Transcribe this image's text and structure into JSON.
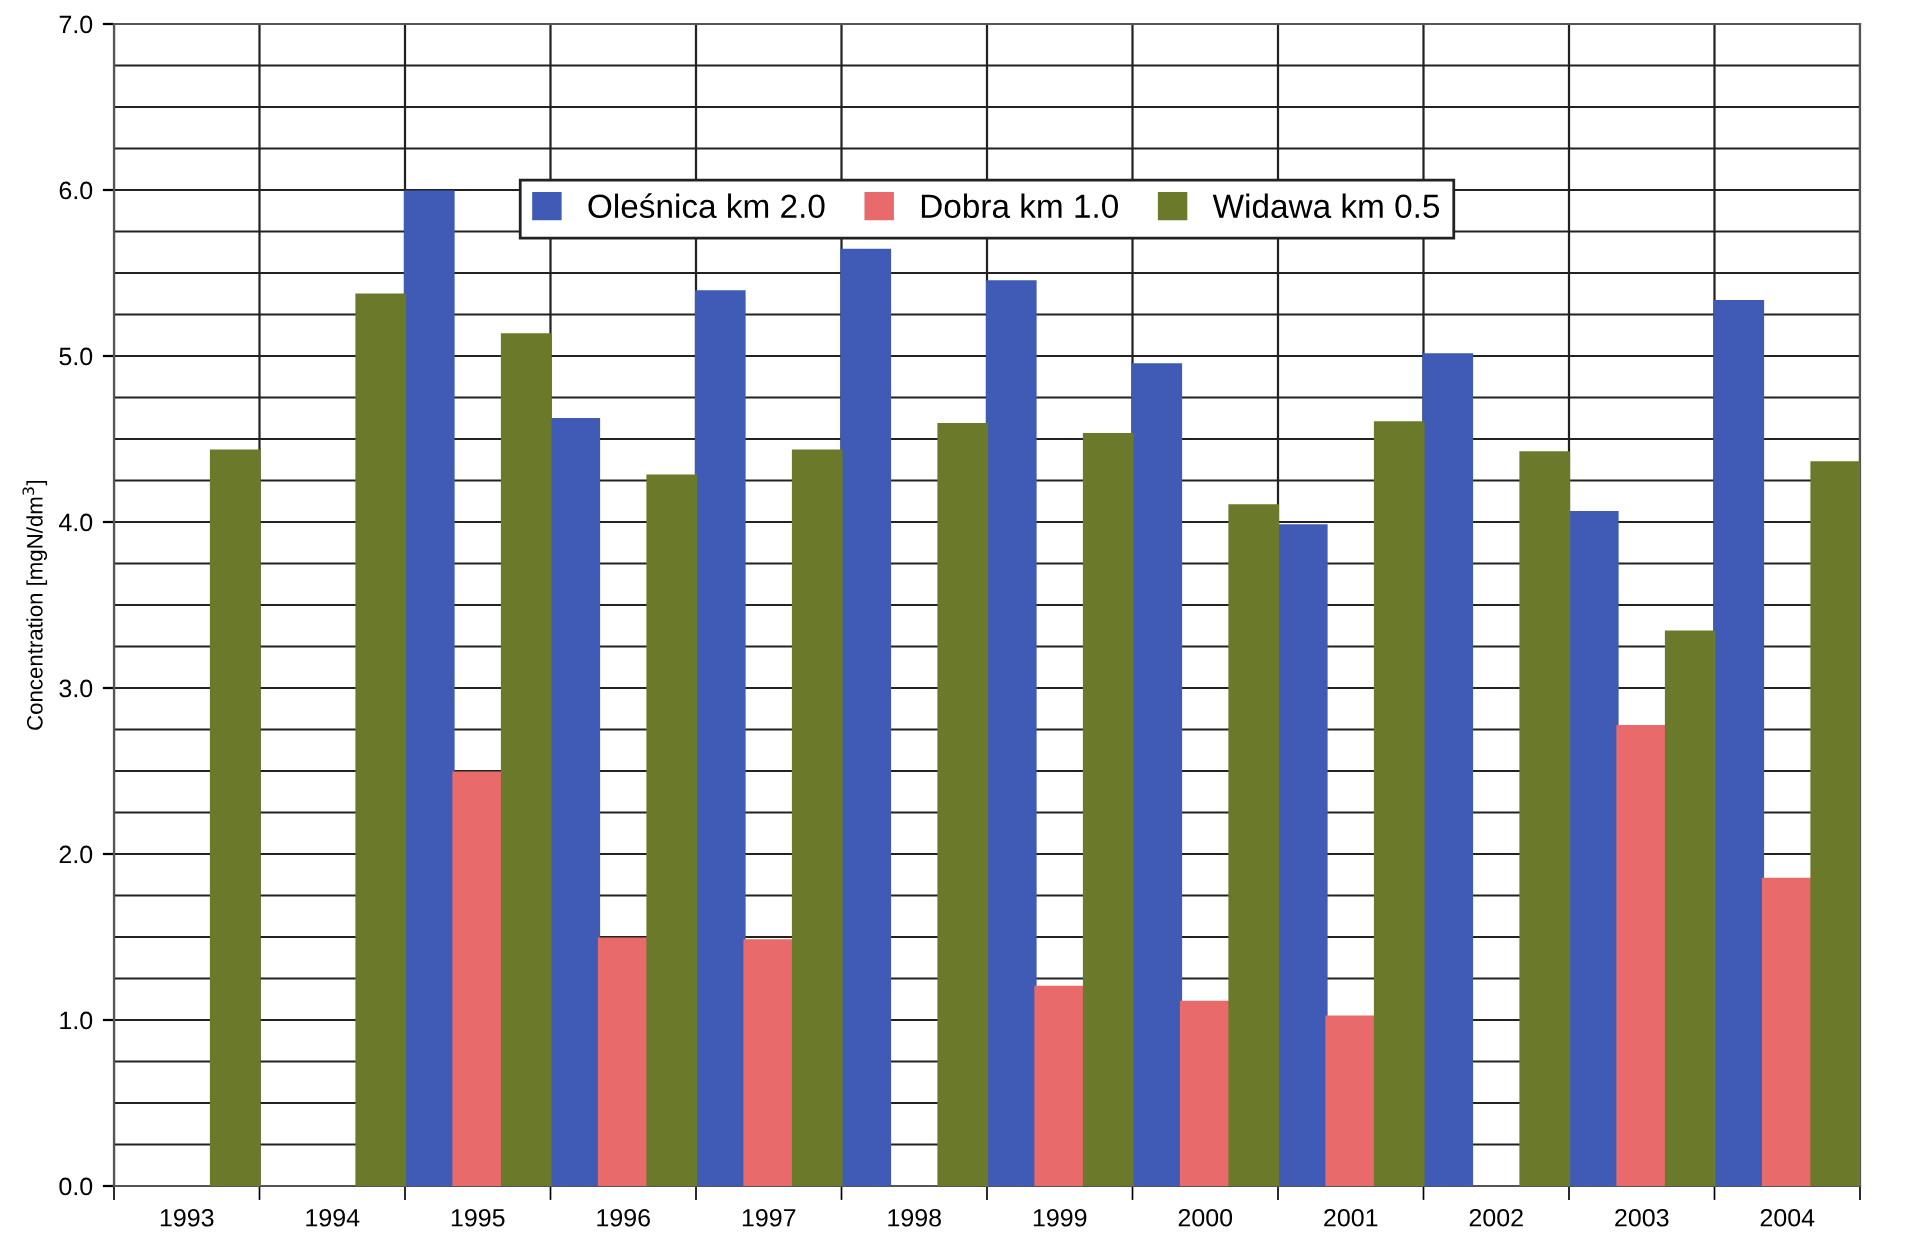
{
  "chart_data": {
    "type": "bar",
    "ylabel": "Concentration [mgN/dm$^{3}$]",
    "categories": [
      "1993",
      "1994",
      "1995",
      "1996",
      "1997",
      "1998",
      "1999",
      "2000",
      "2001",
      "2002",
      "2003",
      "2004"
    ],
    "series": [
      {
        "name": "Oleśnica km 2.0",
        "color": "#3f5bb5",
        "values": [
          null,
          null,
          5.99,
          4.62,
          5.39,
          5.64,
          5.45,
          4.95,
          3.98,
          5.01,
          4.06,
          5.33
        ]
      },
      {
        "name": "Dobra km 1.0",
        "color": "#e86a6a",
        "values": [
          null,
          null,
          2.49,
          1.49,
          1.48,
          null,
          1.2,
          1.11,
          1.02,
          null,
          2.77,
          1.85
        ]
      },
      {
        "name": "Widawa km 0.5",
        "color": "#6b7a2a",
        "values": [
          4.43,
          5.37,
          5.13,
          4.28,
          4.43,
          4.59,
          4.53,
          4.1,
          4.6,
          4.42,
          3.34,
          4.36
        ]
      }
    ],
    "ylim": [
      0,
      7
    ],
    "yticks": [
      {
        "value": 0,
        "label": "0.0"
      },
      {
        "value": 0.25,
        "label": null
      },
      {
        "value": 0.5,
        "label": null
      },
      {
        "value": 0.75,
        "label": null
      },
      {
        "value": 1,
        "label": "1.0"
      },
      {
        "value": 1.25,
        "label": null
      },
      {
        "value": 1.5,
        "label": null
      },
      {
        "value": 1.75,
        "label": null
      },
      {
        "value": 2,
        "label": "2.0"
      },
      {
        "value": 2.25,
        "label": null
      },
      {
        "value": 2.5,
        "label": null
      },
      {
        "value": 2.75,
        "label": null
      },
      {
        "value": 3,
        "label": "3.0"
      },
      {
        "value": 3.25,
        "label": null
      },
      {
        "value": 3.5,
        "label": null
      },
      {
        "value": 3.75,
        "label": null
      },
      {
        "value": 4,
        "label": "4.0"
      },
      {
        "value": 4.25,
        "label": null
      },
      {
        "value": 4.5,
        "label": null
      },
      {
        "value": 4.75,
        "label": null
      },
      {
        "value": 5,
        "label": "5.0"
      },
      {
        "value": 5.25,
        "label": null
      },
      {
        "value": 5.5,
        "label": null
      },
      {
        "value": 5.75,
        "label": null
      },
      {
        "value": 6,
        "label": "6.0"
      },
      {
        "value": 6.25,
        "label": null
      },
      {
        "value": 6.5,
        "label": null
      },
      {
        "value": 6.75,
        "label": null
      },
      {
        "value": 7,
        "label": "7.0"
      }
    ],
    "grid": true,
    "legend": "top"
  }
}
